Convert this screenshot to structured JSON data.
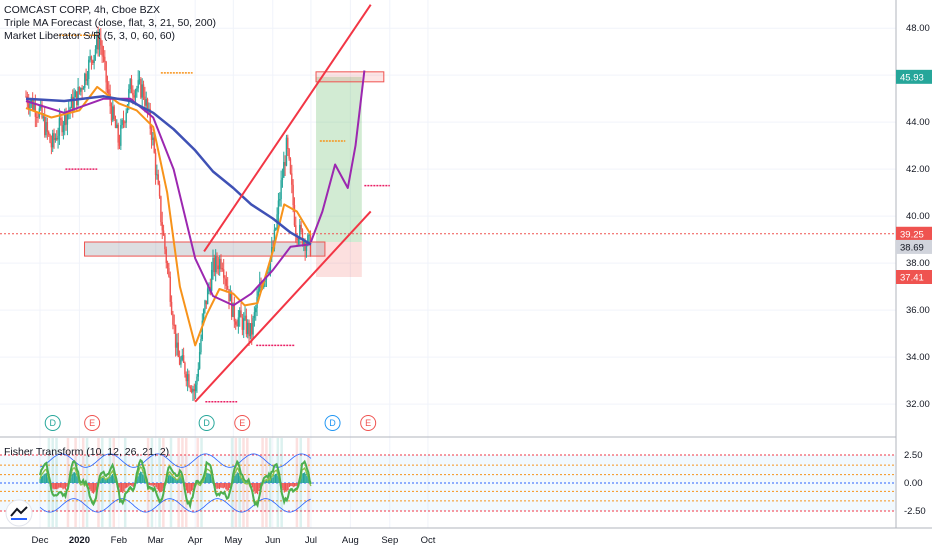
{
  "header": {
    "title": "COMCAST CORP, 4h, Cboe BZX",
    "indicator_1": "Triple MA Forecast (close, flat, 3, 21, 50, 200)",
    "indicator_2": "Market Liberator S/R (5, 3, 0, 60, 60)"
  },
  "oscillator": {
    "title": "Fisher Transform (10, 12, 26, 21, 2)",
    "y_ticks": [
      "2.50",
      "0.00",
      "-2.50"
    ]
  },
  "chart_data": {
    "type": "line",
    "title": "COMCAST CORP, 4h, Cboe BZX",
    "x_ticks": [
      "Dec",
      "2020",
      "Feb",
      "Mar",
      "Apr",
      "May",
      "Jun",
      "Jul",
      "Aug",
      "Sep",
      "Oct"
    ],
    "y_ticks": [
      32.0,
      34.0,
      36.0,
      38.0,
      40.0,
      42.0,
      44.0,
      46.0,
      48.0
    ],
    "ylim": [
      30.6,
      49.2
    ],
    "price_tags": [
      {
        "label": "45.93",
        "value": 45.93,
        "color": "#26a69a"
      },
      {
        "label": "39.25",
        "value": 39.25,
        "color": "#ef5350"
      },
      {
        "label": "38.69",
        "value": 38.69,
        "color": "#d1d4dc"
      },
      {
        "label": "37.41",
        "value": 37.41,
        "color": "#ef5350"
      }
    ],
    "events": [
      {
        "letter": "D",
        "date": "Dec",
        "color": "#26a69a"
      },
      {
        "letter": "E",
        "date": "Jan",
        "color": "#ef5350"
      },
      {
        "letter": "D",
        "date": "Apr",
        "color": "#26a69a"
      },
      {
        "letter": "E",
        "date": "Apr",
        "color": "#ef5350"
      },
      {
        "letter": "D",
        "date": "Jul",
        "color": "#2196f3"
      },
      {
        "letter": "E",
        "date": "Jul",
        "color": "#ef5350"
      }
    ],
    "series": [
      {
        "name": "price",
        "color": "#ef5350",
        "x": [
          "Nov 20",
          "Dec 1",
          "Dec 10",
          "Dec 20",
          "Jan 1",
          "Jan 10",
          "Jan 17",
          "Jan 24",
          "Feb 1",
          "Feb 10",
          "Feb 20",
          "Feb 27",
          "Mar 5",
          "Mar 12",
          "Mar 18",
          "Mar 24",
          "Apr 1",
          "Apr 8",
          "Apr 15",
          "Apr 22",
          "May 1",
          "May 8",
          "May 15",
          "May 22",
          "Jun 1",
          "Jun 8",
          "Jun 12",
          "Jun 19",
          "Jun 26",
          "Jul 1"
        ],
        "values": [
          45.1,
          44.4,
          43.0,
          44.2,
          45.3,
          46.7,
          47.6,
          45.0,
          43.1,
          45.5,
          45.4,
          43.5,
          40.0,
          37.0,
          34.0,
          33.5,
          32.5,
          36.0,
          37.8,
          38.2,
          35.8,
          35.5,
          35.0,
          37.0,
          38.5,
          41.5,
          43.0,
          39.5,
          39.0,
          38.69
        ]
      },
      {
        "name": "MA 21",
        "color": "#f7931a",
        "x": [
          "Nov 20",
          "Dec 10",
          "Jan 1",
          "Jan 15",
          "Feb 1",
          "Feb 15",
          "Feb 28",
          "Mar 10",
          "Mar 20",
          "Apr 1",
          "Apr 10",
          "Apr 20",
          "May 1",
          "May 10",
          "May 20",
          "Jun 1",
          "Jun 10",
          "Jun 20",
          "Jul 1"
        ],
        "values": [
          44.6,
          44.2,
          44.5,
          45.5,
          44.8,
          44.5,
          43.8,
          41.0,
          37.0,
          34.5,
          35.8,
          36.9,
          36.7,
          36.2,
          36.3,
          38.5,
          40.5,
          40.2,
          39.2
        ]
      },
      {
        "name": "MA 50",
        "color": "#9c27b0",
        "x": [
          "Nov 20",
          "Dec 20",
          "Jan 20",
          "Feb 10",
          "Feb 28",
          "Mar 15",
          "Apr 1",
          "Apr 15",
          "May 1",
          "May 15",
          "Jun 1",
          "Jun 15",
          "Jul 1"
        ],
        "values": [
          44.9,
          44.4,
          45.0,
          45.0,
          44.2,
          42.0,
          38.2,
          36.6,
          36.2,
          36.7,
          37.7,
          38.7,
          38.8
        ]
      },
      {
        "name": "MA 200",
        "color": "#3f51b5",
        "x": [
          "Nov 20",
          "Dec 20",
          "Jan 20",
          "Feb 10",
          "Feb 28",
          "Mar 15",
          "Apr 1",
          "Apr 15",
          "May 1",
          "May 15",
          "Jun 1",
          "Jun 15",
          "Jul 1"
        ],
        "values": [
          45.0,
          44.9,
          45.1,
          44.9,
          44.4,
          43.7,
          42.8,
          41.9,
          41.2,
          40.5,
          39.9,
          39.3,
          38.8
        ]
      },
      {
        "name": "forecast",
        "color": "#9c27b0",
        "x": [
          "Jul 1",
          "Jul 10",
          "Jul 20",
          "Jul 30",
          "Aug 5",
          "Aug 12"
        ],
        "values": [
          38.9,
          40.2,
          42.2,
          41.2,
          43.0,
          46.2
        ]
      }
    ],
    "channel": {
      "upper": {
        "x": [
          "Apr 8",
          "Aug 17"
        ],
        "values": [
          38.5,
          49.0
        ]
      },
      "lower": {
        "x": [
          "Apr 1",
          "Aug 17"
        ],
        "values": [
          32.1,
          40.2
        ]
      }
    },
    "zone": {
      "x": [
        "Jan 5",
        "Jul 12"
      ],
      "values": [
        38.3,
        38.9
      ]
    },
    "position": {
      "entry": 38.9,
      "target": 45.93,
      "stop": 37.41,
      "x": [
        "Jul 5",
        "Aug 10"
      ]
    },
    "grid": true
  },
  "colors": {
    "up": "#26a69a",
    "down": "#ef5350",
    "ma_fast": "#f7931a",
    "ma_slow": "#9c27b0",
    "ma_200": "#3f51b5",
    "fisher": "#4caf50"
  }
}
